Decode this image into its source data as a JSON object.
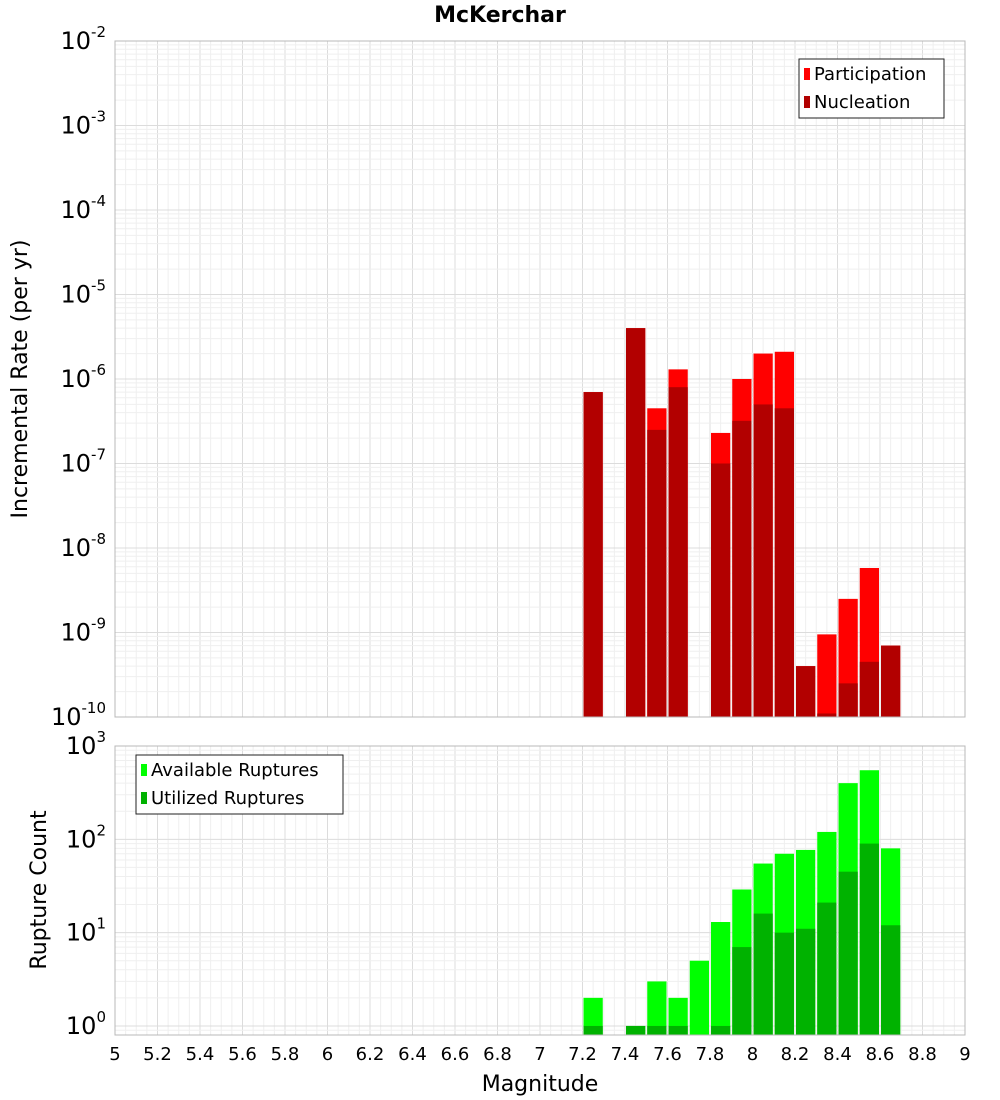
{
  "chart_data": [
    {
      "type": "bar",
      "title": "McKerchar",
      "xlabel": "",
      "ylabel": "Incremental Rate (per yr)",
      "y_scale": "log",
      "xlim": [
        5,
        9
      ],
      "ylim": [
        1e-10,
        0.01
      ],
      "grid": true,
      "legend_placement": "top-right",
      "x_ticks": [
        "5",
        "5.2",
        "5.4",
        "5.6",
        "5.8",
        "6",
        "6.2",
        "6.4",
        "6.6",
        "6.8",
        "7",
        "7.2",
        "7.4",
        "7.6",
        "7.8",
        "8",
        "8.2",
        "8.4",
        "8.6",
        "8.8",
        "9"
      ],
      "y_ticks": [
        {
          "base": "10",
          "exp": "-10"
        },
        {
          "base": "10",
          "exp": "-9"
        },
        {
          "base": "10",
          "exp": "-8"
        },
        {
          "base": "10",
          "exp": "-7"
        },
        {
          "base": "10",
          "exp": "-6"
        },
        {
          "base": "10",
          "exp": "-5"
        },
        {
          "base": "10",
          "exp": "-4"
        },
        {
          "base": "10",
          "exp": "-3"
        },
        {
          "base": "10",
          "exp": "-2"
        }
      ],
      "series": [
        {
          "name": "Participation",
          "color": "#ff0000",
          "points": [
            {
              "x": 7.25,
              "y": 7e-07
            },
            {
              "x": 7.45,
              "y": 4e-06
            },
            {
              "x": 7.55,
              "y": 4.5e-07
            },
            {
              "x": 7.65,
              "y": 1.3e-06
            },
            {
              "x": 7.85,
              "y": 2.3e-07
            },
            {
              "x": 7.95,
              "y": 1e-06
            },
            {
              "x": 8.05,
              "y": 2e-06
            },
            {
              "x": 8.15,
              "y": 2.1e-06
            },
            {
              "x": 8.25,
              "y": 4e-10
            },
            {
              "x": 8.35,
              "y": 9.5e-10
            },
            {
              "x": 8.45,
              "y": 2.5e-09
            },
            {
              "x": 8.55,
              "y": 5.8e-09
            },
            {
              "x": 8.65,
              "y": 7e-10
            }
          ]
        },
        {
          "name": "Nucleation",
          "color": "#b20000",
          "points": [
            {
              "x": 7.25,
              "y": 7e-07
            },
            {
              "x": 7.45,
              "y": 4e-06
            },
            {
              "x": 7.55,
              "y": 2.5e-07
            },
            {
              "x": 7.65,
              "y": 8e-07
            },
            {
              "x": 7.85,
              "y": 1e-07
            },
            {
              "x": 7.95,
              "y": 3.2e-07
            },
            {
              "x": 8.05,
              "y": 5e-07
            },
            {
              "x": 8.15,
              "y": 4.5e-07
            },
            {
              "x": 8.25,
              "y": 4e-10
            },
            {
              "x": 8.35,
              "y": 1.1e-10
            },
            {
              "x": 8.45,
              "y": 2.5e-10
            },
            {
              "x": 8.55,
              "y": 4.5e-10
            },
            {
              "x": 8.65,
              "y": 7e-10
            }
          ]
        }
      ]
    },
    {
      "type": "bar",
      "title": "",
      "xlabel": "Magnitude",
      "ylabel": "Rupture Count",
      "y_scale": "log",
      "xlim": [
        5,
        9
      ],
      "ylim": [
        0.8,
        1000
      ],
      "grid": true,
      "legend_placement": "top-left",
      "x_ticks": [
        "5",
        "5.2",
        "5.4",
        "5.6",
        "5.8",
        "6",
        "6.2",
        "6.4",
        "6.6",
        "6.8",
        "7",
        "7.2",
        "7.4",
        "7.6",
        "7.8",
        "8",
        "8.2",
        "8.4",
        "8.6",
        "8.8",
        "9"
      ],
      "y_ticks": [
        {
          "base": "10",
          "exp": "0"
        },
        {
          "base": "10",
          "exp": "1"
        },
        {
          "base": "10",
          "exp": "2"
        },
        {
          "base": "10",
          "exp": "3"
        }
      ],
      "series": [
        {
          "name": "Available Ruptures",
          "color": "#00ff00",
          "points": [
            {
              "x": 7.25,
              "y": 2
            },
            {
              "x": 7.45,
              "y": 1
            },
            {
              "x": 7.55,
              "y": 3
            },
            {
              "x": 7.65,
              "y": 2
            },
            {
              "x": 7.75,
              "y": 5
            },
            {
              "x": 7.85,
              "y": 13
            },
            {
              "x": 7.95,
              "y": 29
            },
            {
              "x": 8.05,
              "y": 55
            },
            {
              "x": 8.15,
              "y": 70
            },
            {
              "x": 8.25,
              "y": 77
            },
            {
              "x": 8.35,
              "y": 120
            },
            {
              "x": 8.45,
              "y": 400
            },
            {
              "x": 8.55,
              "y": 550
            },
            {
              "x": 8.65,
              "y": 80
            }
          ]
        },
        {
          "name": "Utilized Ruptures",
          "color": "#00b200",
          "points": [
            {
              "x": 7.25,
              "y": 1
            },
            {
              "x": 7.45,
              "y": 1
            },
            {
              "x": 7.55,
              "y": 1
            },
            {
              "x": 7.65,
              "y": 1
            },
            {
              "x": 7.85,
              "y": 1
            },
            {
              "x": 7.95,
              "y": 7
            },
            {
              "x": 8.05,
              "y": 16
            },
            {
              "x": 8.15,
              "y": 10
            },
            {
              "x": 8.25,
              "y": 11
            },
            {
              "x": 8.35,
              "y": 21
            },
            {
              "x": 8.45,
              "y": 45
            },
            {
              "x": 8.55,
              "y": 90
            },
            {
              "x": 8.65,
              "y": 12
            }
          ]
        }
      ]
    }
  ]
}
